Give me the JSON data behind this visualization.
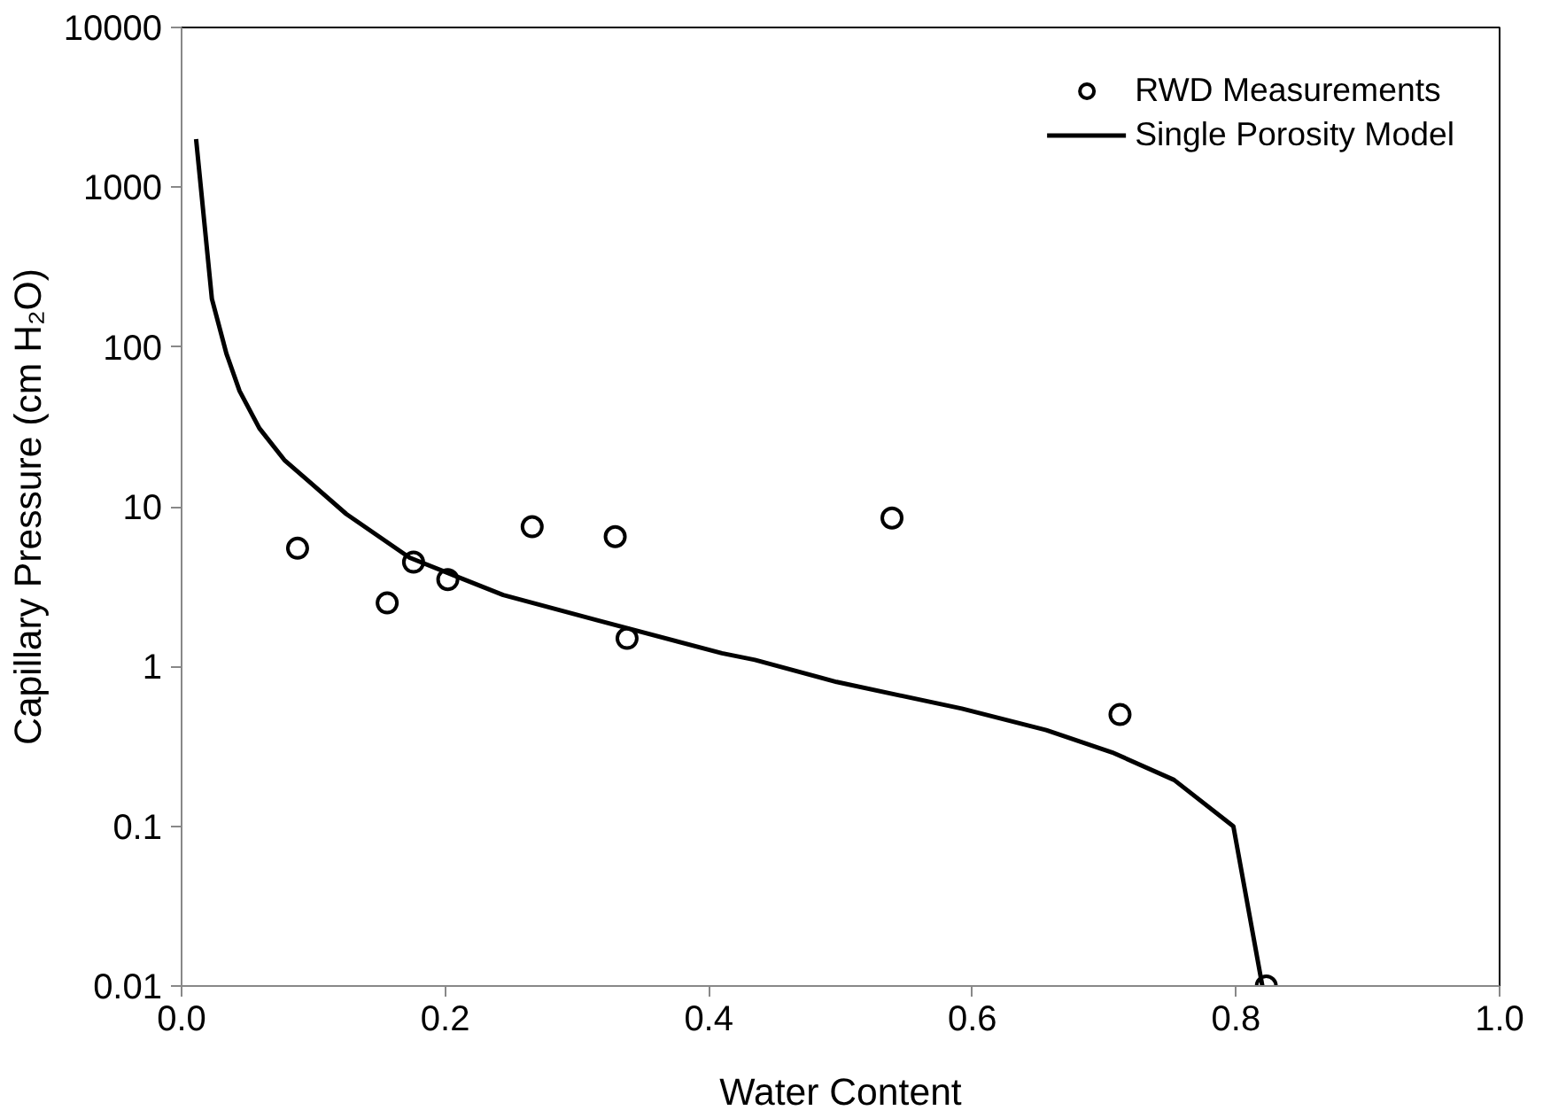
{
  "chart_data": {
    "type": "scatter",
    "xlabel": "Water Content",
    "ylabel": "Capillary Pressure (cm H₂O)",
    "log": "y",
    "grid": false,
    "legend": "top right",
    "xlim": [
      0,
      1
    ],
    "xticks": [
      {
        "value": 0,
        "label": "0.0"
      },
      {
        "value": 0.2,
        "label": "0.2"
      },
      {
        "value": 0.4,
        "label": "0.4"
      },
      {
        "value": 0.6,
        "label": "0.6"
      },
      {
        "value": 0.8,
        "label": "0.8"
      },
      {
        "value": 1,
        "label": "1.0"
      }
    ],
    "ylim": [
      0.01,
      10000
    ],
    "yticks": [
      0.01,
      0.1,
      1,
      10,
      100,
      1000,
      10000
    ],
    "series": [
      {
        "name": "RWD Measurements",
        "marker": "circle",
        "color": "#000000",
        "x": [
          0.088,
          0.156,
          0.176,
          0.202,
          0.266,
          0.329,
          0.338,
          0.539,
          0.712,
          0.823
        ],
        "values": [
          5.5,
          2.5,
          4.5,
          3.5,
          7.5,
          6.5,
          1.5,
          8.5,
          0.5,
          0.01
        ]
      },
      {
        "name": "Single Porosity Model",
        "type": "line",
        "marker": "none",
        "line_style": "solid",
        "color": "#000000",
        "x": [
          0.011,
          0.023,
          0.034,
          0.044,
          0.059,
          0.078,
          0.097,
          0.125,
          0.173,
          0.244,
          0.316,
          0.41,
          0.435,
          0.497,
          0.592,
          0.656,
          0.706,
          0.753,
          0.798,
          0.82
        ],
        "values": [
          2000,
          200,
          91,
          53,
          31,
          19.6,
          14.3,
          9,
          4.8,
          2.8,
          1.94,
          1.21,
          1.1,
          0.8,
          0.545,
          0.4,
          0.29,
          0.195,
          0.1,
          0.01
        ]
      }
    ]
  }
}
